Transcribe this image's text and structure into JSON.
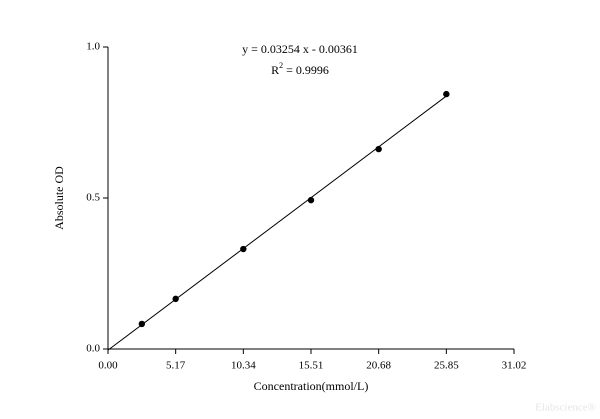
{
  "chart_data": {
    "type": "scatter",
    "x_label": "Concentration(mmol/L)",
    "y_label": "Absolute OD",
    "x": [
      2.585,
      5.17,
      10.34,
      15.51,
      20.68,
      25.85
    ],
    "values": [
      0.083,
      0.166,
      0.331,
      0.493,
      0.662,
      0.844
    ],
    "color": "#000000",
    "fit_line": {
      "x": [
        0,
        25.85
      ],
      "y": [
        -0.00361,
        0.8376
      ]
    },
    "equation": "y = 0.03254 x - 0.00361",
    "r_squared": {
      "prefix": "R",
      "sup": "2",
      "rest": " = 0.9996"
    },
    "watermark": "Elabscience®",
    "xlim": [
      0,
      31.02
    ],
    "ylim": [
      0,
      1
    ],
    "xticks": [
      {
        "value": 0,
        "label": "0.00"
      },
      5.17,
      10.34,
      15.51,
      20.68,
      25.85,
      31.02
    ],
    "yticks": [
      {
        "value": 0,
        "label": "0.0"
      },
      0.5,
      {
        "value": 1,
        "label": "1.0"
      }
    ]
  }
}
